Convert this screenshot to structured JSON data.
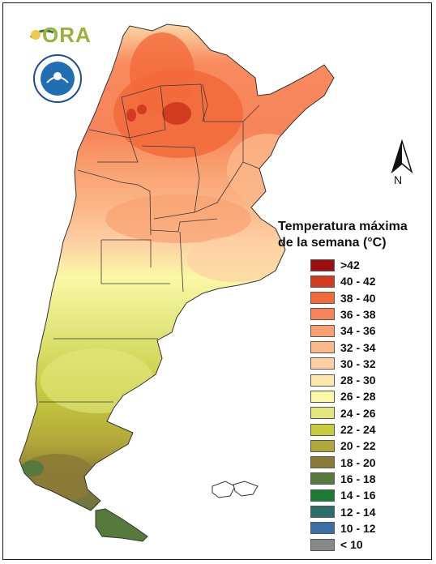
{
  "header": {
    "ora_logo_text": "ORA"
  },
  "north_arrow": {
    "label": "N"
  },
  "legend": {
    "title_line1": "Temperatura máxima",
    "title_line2": "de la semana (°C)",
    "items": [
      {
        "label": ">42",
        "color": "#9c0d0d"
      },
      {
        "label": "40 - 42",
        "color": "#d13b1f"
      },
      {
        "label": "38 - 40",
        "color": "#f26a3a"
      },
      {
        "label": "36 - 38",
        "color": "#f7845a"
      },
      {
        "label": "34 - 36",
        "color": "#f9a170"
      },
      {
        "label": "32 - 34",
        "color": "#fbb88a"
      },
      {
        "label": "30 - 32",
        "color": "#fdd0a4"
      },
      {
        "label": "28 - 30",
        "color": "#fde7ad"
      },
      {
        "label": "26 - 28",
        "color": "#fbf8a6"
      },
      {
        "label": "24 - 26",
        "color": "#e3e77e"
      },
      {
        "label": "22 - 24",
        "color": "#c8cc3e"
      },
      {
        "label": "20 - 22",
        "color": "#b1a83a"
      },
      {
        "label": "18 - 20",
        "color": "#8b7a35"
      },
      {
        "label": "16 - 18",
        "color": "#557a3c"
      },
      {
        "label": "14 - 16",
        "color": "#1c7a34"
      },
      {
        "label": "12 - 14",
        "color": "#2e6e68"
      },
      {
        "label": "10 - 12",
        "color": "#3b6ea5"
      },
      {
        "label": "< 10",
        "color": "#888888"
      }
    ]
  }
}
